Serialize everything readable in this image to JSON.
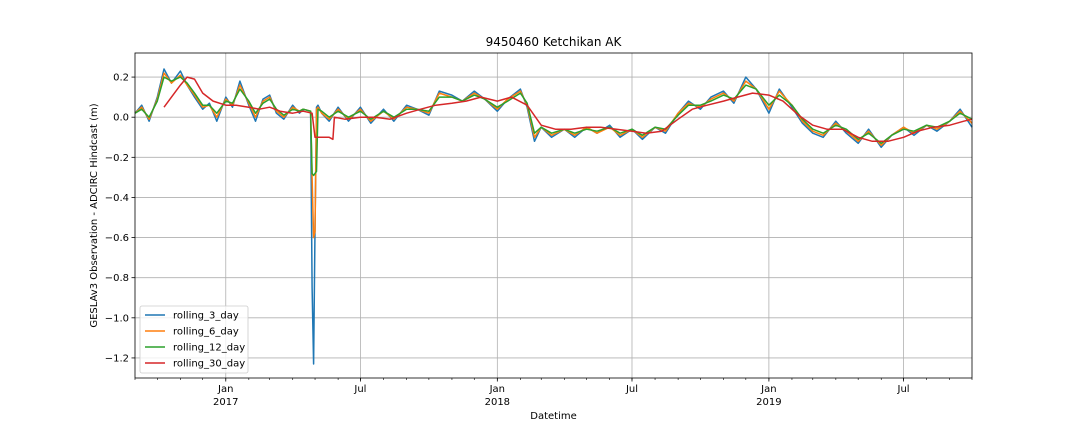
{
  "chart_data": {
    "type": "line",
    "title": "9450460 Ketchikan AK",
    "xlabel": "Datetime",
    "ylabel": "GESLAv3 Observation - ADCIRC Hindcast (m)",
    "xlim": [
      "2016-09-01",
      "2019-10-01"
    ],
    "ylim": [
      -1.3,
      0.32
    ],
    "grid": true,
    "legend_position": "lower-left",
    "x_ticks": [
      {
        "date": "2017-01-01",
        "label": "Jan",
        "sublabel": "2017"
      },
      {
        "date": "2017-07-01",
        "label": "Jul",
        "sublabel": ""
      },
      {
        "date": "2018-01-01",
        "label": "Jan",
        "sublabel": "2018"
      },
      {
        "date": "2018-07-01",
        "label": "Jul",
        "sublabel": ""
      },
      {
        "date": "2019-01-01",
        "label": "Jan",
        "sublabel": "2019"
      },
      {
        "date": "2019-07-01",
        "label": "Jul",
        "sublabel": ""
      }
    ],
    "y_ticks": [
      0.2,
      0.0,
      -0.2,
      -0.4,
      -0.6,
      -0.8,
      -1.0,
      -1.2
    ],
    "y_tick_labels": [
      "0.2",
      "0.0",
      "−0.2",
      "−0.4",
      "−0.6",
      "−0.8",
      "−1.0",
      "−1.2"
    ],
    "series": [
      {
        "name": "rolling_3_day",
        "color": "#1f77b4",
        "x": [
          "2016-09-01",
          "2016-09-10",
          "2016-09-20",
          "2016-10-01",
          "2016-10-10",
          "2016-10-20",
          "2016-11-01",
          "2016-11-10",
          "2016-11-20",
          "2016-12-01",
          "2016-12-10",
          "2016-12-20",
          "2017-01-01",
          "2017-01-10",
          "2017-01-20",
          "2017-02-01",
          "2017-02-10",
          "2017-02-20",
          "2017-03-01",
          "2017-03-10",
          "2017-03-20",
          "2017-04-01",
          "2017-04-10",
          "2017-04-15",
          "2017-04-25",
          "2017-04-27",
          "2017-04-29",
          "2017-05-01",
          "2017-05-03",
          "2017-05-05",
          "2017-05-10",
          "2017-05-20",
          "2017-06-01",
          "2017-06-15",
          "2017-07-01",
          "2017-07-15",
          "2017-08-01",
          "2017-08-15",
          "2017-09-01",
          "2017-09-15",
          "2017-10-01",
          "2017-10-15",
          "2017-11-01",
          "2017-11-15",
          "2017-12-01",
          "2017-12-15",
          "2018-01-01",
          "2018-01-15",
          "2018-02-01",
          "2018-02-10",
          "2018-02-20",
          "2018-03-01",
          "2018-03-15",
          "2018-04-01",
          "2018-04-15",
          "2018-05-01",
          "2018-05-15",
          "2018-06-01",
          "2018-06-15",
          "2018-07-01",
          "2018-07-15",
          "2018-08-01",
          "2018-08-15",
          "2018-09-01",
          "2018-09-15",
          "2018-10-01",
          "2018-10-15",
          "2018-11-01",
          "2018-11-15",
          "2018-12-01",
          "2018-12-15",
          "2019-01-01",
          "2019-01-15",
          "2019-02-01",
          "2019-02-15",
          "2019-03-01",
          "2019-03-15",
          "2019-04-01",
          "2019-04-15",
          "2019-05-01",
          "2019-05-15",
          "2019-06-01",
          "2019-06-15",
          "2019-07-01",
          "2019-07-15",
          "2019-08-01",
          "2019-08-15",
          "2019-09-01",
          "2019-09-15",
          "2019-10-01"
        ],
        "y": [
          0.02,
          0.06,
          -0.02,
          0.1,
          0.24,
          0.17,
          0.23,
          0.16,
          0.1,
          0.04,
          0.07,
          -0.02,
          0.1,
          0.05,
          0.18,
          0.06,
          -0.02,
          0.09,
          0.11,
          0.02,
          -0.01,
          0.06,
          0.02,
          0.04,
          0.03,
          -0.85,
          -1.23,
          -0.56,
          0.05,
          0.06,
          0.02,
          -0.02,
          0.05,
          -0.02,
          0.05,
          -0.03,
          0.04,
          -0.02,
          0.06,
          0.04,
          0.01,
          0.13,
          0.11,
          0.08,
          0.13,
          0.09,
          0.03,
          0.09,
          0.14,
          0.05,
          -0.12,
          -0.05,
          -0.1,
          -0.06,
          -0.1,
          -0.05,
          -0.08,
          -0.04,
          -0.1,
          -0.06,
          -0.11,
          -0.05,
          -0.08,
          0.02,
          0.08,
          0.04,
          0.1,
          0.13,
          0.07,
          0.2,
          0.14,
          0.02,
          0.14,
          0.05,
          -0.03,
          -0.08,
          -0.1,
          -0.02,
          -0.08,
          -0.13,
          -0.06,
          -0.15,
          -0.09,
          -0.05,
          -0.09,
          -0.04,
          -0.07,
          -0.02,
          0.04,
          -0.05
        ]
      },
      {
        "name": "rolling_6_day",
        "color": "#ff7f0e",
        "x": [
          "2016-09-01",
          "2016-09-10",
          "2016-09-20",
          "2016-10-01",
          "2016-10-10",
          "2016-10-20",
          "2016-11-01",
          "2016-11-10",
          "2016-11-20",
          "2016-12-01",
          "2016-12-10",
          "2016-12-20",
          "2017-01-01",
          "2017-01-10",
          "2017-01-20",
          "2017-02-01",
          "2017-02-10",
          "2017-02-20",
          "2017-03-01",
          "2017-03-10",
          "2017-03-20",
          "2017-04-01",
          "2017-04-10",
          "2017-04-15",
          "2017-04-25",
          "2017-04-27",
          "2017-04-29",
          "2017-05-01",
          "2017-05-03",
          "2017-05-05",
          "2017-05-10",
          "2017-05-20",
          "2017-06-01",
          "2017-06-15",
          "2017-07-01",
          "2017-07-15",
          "2017-08-01",
          "2017-08-15",
          "2017-09-01",
          "2017-09-15",
          "2017-10-01",
          "2017-10-15",
          "2017-11-01",
          "2017-11-15",
          "2017-12-01",
          "2017-12-15",
          "2018-01-01",
          "2018-01-15",
          "2018-02-01",
          "2018-02-10",
          "2018-02-20",
          "2018-03-01",
          "2018-03-15",
          "2018-04-01",
          "2018-04-15",
          "2018-05-01",
          "2018-05-15",
          "2018-06-01",
          "2018-06-15",
          "2018-07-01",
          "2018-07-15",
          "2018-08-01",
          "2018-08-15",
          "2018-09-01",
          "2018-09-15",
          "2018-10-01",
          "2018-10-15",
          "2018-11-01",
          "2018-11-15",
          "2018-12-01",
          "2018-12-15",
          "2019-01-01",
          "2019-01-15",
          "2019-02-01",
          "2019-02-15",
          "2019-03-01",
          "2019-03-15",
          "2019-04-01",
          "2019-04-15",
          "2019-05-01",
          "2019-05-15",
          "2019-06-01",
          "2019-06-15",
          "2019-07-01",
          "2019-07-15",
          "2019-08-01",
          "2019-08-15",
          "2019-09-01",
          "2019-09-15",
          "2019-10-01"
        ],
        "y": [
          0.02,
          0.05,
          -0.01,
          0.09,
          0.22,
          0.17,
          0.21,
          0.16,
          0.11,
          0.05,
          0.06,
          0.0,
          0.09,
          0.06,
          0.16,
          0.07,
          0.0,
          0.08,
          0.1,
          0.03,
          0.0,
          0.05,
          0.03,
          0.04,
          0.03,
          -0.3,
          -0.6,
          -0.57,
          0.04,
          0.05,
          0.02,
          -0.01,
          0.04,
          -0.01,
          0.04,
          -0.02,
          0.03,
          -0.01,
          0.05,
          0.04,
          0.02,
          0.12,
          0.1,
          0.08,
          0.12,
          0.09,
          0.04,
          0.09,
          0.13,
          0.06,
          -0.1,
          -0.05,
          -0.09,
          -0.06,
          -0.09,
          -0.05,
          -0.08,
          -0.05,
          -0.09,
          -0.06,
          -0.1,
          -0.05,
          -0.07,
          0.02,
          0.07,
          0.05,
          0.09,
          0.12,
          0.08,
          0.18,
          0.14,
          0.04,
          0.13,
          0.06,
          -0.02,
          -0.07,
          -0.09,
          -0.03,
          -0.07,
          -0.12,
          -0.07,
          -0.14,
          -0.09,
          -0.05,
          -0.08,
          -0.04,
          -0.06,
          -0.02,
          0.03,
          -0.03
        ]
      },
      {
        "name": "rolling_12_day",
        "color": "#2ca02c",
        "x": [
          "2016-09-01",
          "2016-09-10",
          "2016-09-20",
          "2016-10-01",
          "2016-10-10",
          "2016-10-20",
          "2016-11-01",
          "2016-11-10",
          "2016-11-20",
          "2016-12-01",
          "2016-12-10",
          "2016-12-20",
          "2017-01-01",
          "2017-01-10",
          "2017-01-20",
          "2017-02-01",
          "2017-02-10",
          "2017-02-20",
          "2017-03-01",
          "2017-03-10",
          "2017-03-20",
          "2017-04-01",
          "2017-04-10",
          "2017-04-15",
          "2017-04-25",
          "2017-04-27",
          "2017-04-29",
          "2017-05-01",
          "2017-05-03",
          "2017-05-05",
          "2017-05-10",
          "2017-05-20",
          "2017-06-01",
          "2017-06-15",
          "2017-07-01",
          "2017-07-15",
          "2017-08-01",
          "2017-08-15",
          "2017-09-01",
          "2017-09-15",
          "2017-10-01",
          "2017-10-15",
          "2017-11-01",
          "2017-11-15",
          "2017-12-01",
          "2017-12-15",
          "2018-01-01",
          "2018-01-15",
          "2018-02-01",
          "2018-02-10",
          "2018-02-20",
          "2018-03-01",
          "2018-03-15",
          "2018-04-01",
          "2018-04-15",
          "2018-05-01",
          "2018-05-15",
          "2018-06-01",
          "2018-06-15",
          "2018-07-01",
          "2018-07-15",
          "2018-08-01",
          "2018-08-15",
          "2018-09-01",
          "2018-09-15",
          "2018-10-01",
          "2018-10-15",
          "2018-11-01",
          "2018-11-15",
          "2018-12-01",
          "2018-12-15",
          "2019-01-01",
          "2019-01-15",
          "2019-02-01",
          "2019-02-15",
          "2019-03-01",
          "2019-03-15",
          "2019-04-01",
          "2019-04-15",
          "2019-05-01",
          "2019-05-15",
          "2019-06-01",
          "2019-06-15",
          "2019-07-01",
          "2019-07-15",
          "2019-08-01",
          "2019-08-15",
          "2019-09-01",
          "2019-09-15",
          "2019-10-01"
        ],
        "y": [
          0.02,
          0.04,
          0.0,
          0.08,
          0.2,
          0.18,
          0.2,
          0.17,
          0.12,
          0.06,
          0.06,
          0.02,
          0.08,
          0.07,
          0.14,
          0.08,
          0.02,
          0.07,
          0.09,
          0.04,
          0.01,
          0.04,
          0.03,
          0.04,
          0.03,
          -0.28,
          -0.29,
          -0.28,
          -0.27,
          0.04,
          0.03,
          0.0,
          0.03,
          0.0,
          0.03,
          -0.01,
          0.03,
          0.0,
          0.04,
          0.04,
          0.03,
          0.1,
          0.1,
          0.08,
          0.11,
          0.09,
          0.05,
          0.08,
          0.12,
          0.07,
          -0.08,
          -0.05,
          -0.08,
          -0.06,
          -0.08,
          -0.06,
          -0.07,
          -0.05,
          -0.08,
          -0.06,
          -0.09,
          -0.05,
          -0.06,
          0.01,
          0.06,
          0.06,
          0.08,
          0.11,
          0.09,
          0.16,
          0.14,
          0.06,
          0.11,
          0.06,
          -0.01,
          -0.06,
          -0.08,
          -0.04,
          -0.06,
          -0.11,
          -0.08,
          -0.13,
          -0.09,
          -0.06,
          -0.07,
          -0.04,
          -0.05,
          -0.02,
          0.02,
          -0.01
        ]
      },
      {
        "name": "rolling_30_day",
        "color": "#d62728",
        "x": [
          "2016-10-10",
          "2016-10-20",
          "2016-11-01",
          "2016-11-10",
          "2016-11-20",
          "2016-12-01",
          "2016-12-15",
          "2017-01-01",
          "2017-01-15",
          "2017-02-01",
          "2017-02-15",
          "2017-03-01",
          "2017-03-15",
          "2017-04-01",
          "2017-04-15",
          "2017-04-27",
          "2017-05-01",
          "2017-05-10",
          "2017-05-20",
          "2017-05-25",
          "2017-05-27",
          "2017-06-10",
          "2017-07-01",
          "2017-07-20",
          "2017-08-10",
          "2017-09-01",
          "2017-09-20",
          "2017-10-10",
          "2017-11-01",
          "2017-11-20",
          "2017-12-10",
          "2018-01-01",
          "2018-01-20",
          "2018-02-10",
          "2018-03-01",
          "2018-03-20",
          "2018-04-10",
          "2018-05-01",
          "2018-05-20",
          "2018-06-10",
          "2018-07-01",
          "2018-07-20",
          "2018-08-10",
          "2018-09-01",
          "2018-09-20",
          "2018-10-10",
          "2018-11-01",
          "2018-11-20",
          "2018-12-10",
          "2019-01-01",
          "2019-01-20",
          "2019-02-10",
          "2019-03-01",
          "2019-03-20",
          "2019-04-10",
          "2019-05-01",
          "2019-05-20",
          "2019-06-10",
          "2019-07-01",
          "2019-07-20",
          "2019-08-10",
          "2019-09-01",
          "2019-09-20",
          "2019-10-01"
        ],
        "y": [
          0.05,
          0.1,
          0.16,
          0.2,
          0.19,
          0.12,
          0.08,
          0.06,
          0.06,
          0.05,
          0.04,
          0.05,
          0.03,
          0.02,
          0.03,
          0.02,
          -0.1,
          -0.1,
          -0.1,
          -0.11,
          -0.0,
          -0.01,
          -0.0,
          0.0,
          -0.01,
          0.02,
          0.04,
          0.06,
          0.07,
          0.08,
          0.1,
          0.08,
          0.1,
          0.06,
          -0.04,
          -0.06,
          -0.06,
          -0.05,
          -0.05,
          -0.06,
          -0.07,
          -0.08,
          -0.07,
          -0.01,
          0.04,
          0.06,
          0.08,
          0.1,
          0.12,
          0.11,
          0.08,
          0.01,
          -0.04,
          -0.06,
          -0.06,
          -0.1,
          -0.12,
          -0.12,
          -0.1,
          -0.07,
          -0.05,
          -0.04,
          -0.02,
          -0.01
        ]
      }
    ]
  }
}
